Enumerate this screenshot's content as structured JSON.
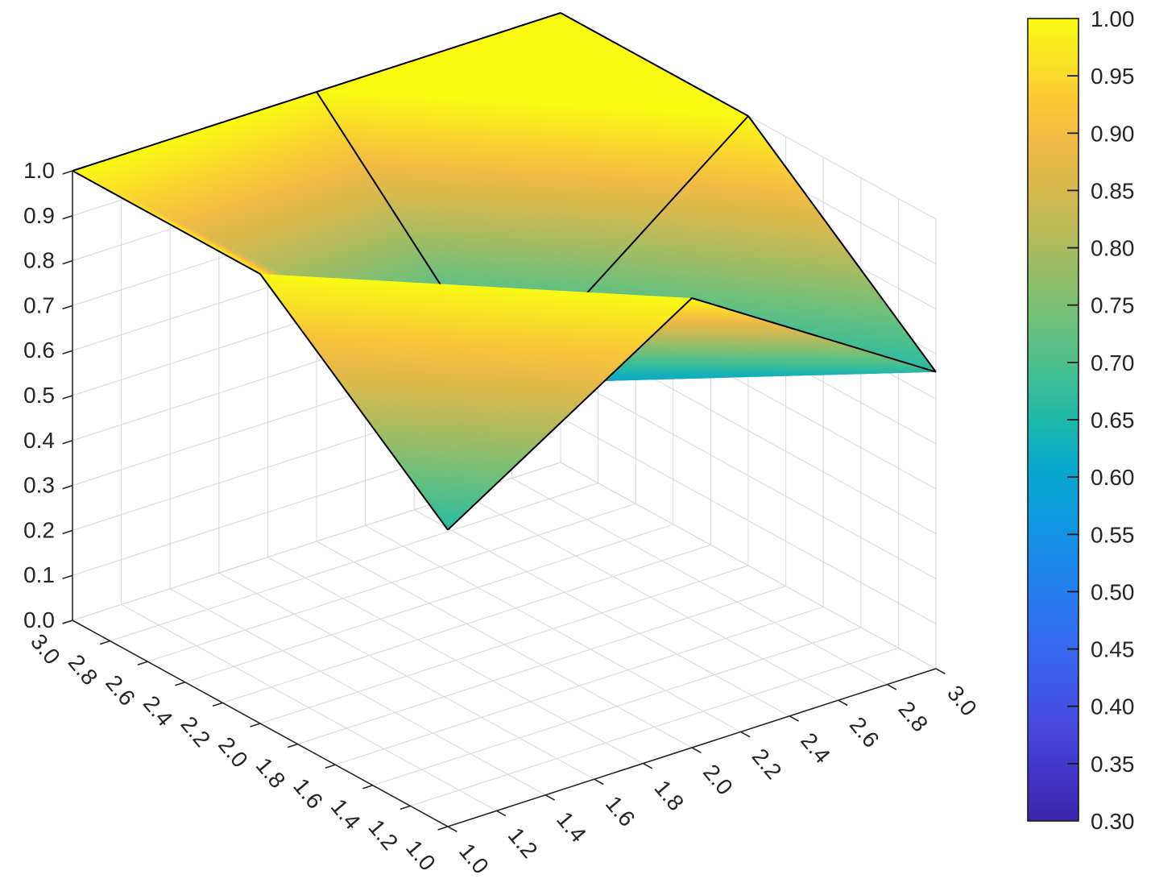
{
  "chart_data": {
    "type": "surface",
    "title": "",
    "xlabel": "",
    "ylabel": "",
    "zlabel": "",
    "x": [
      1,
      2,
      3
    ],
    "y": [
      1,
      2,
      3
    ],
    "z_rows_by_y": [
      [
        0.66,
        1.0,
        0.66
      ],
      [
        1.0,
        0.58,
        1.0
      ],
      [
        1.0,
        1.0,
        1.0
      ]
    ],
    "xlim": [
      1,
      3
    ],
    "ylim": [
      1,
      3
    ],
    "zlim": [
      0,
      1
    ],
    "x_tick_labels": [
      "1.0",
      "1.2",
      "1.4",
      "1.6",
      "1.8",
      "2.0",
      "2.2",
      "2.4",
      "2.6",
      "2.8",
      "3.0"
    ],
    "y_tick_labels": [
      "3.0",
      "2.8",
      "2.6",
      "2.4",
      "2.2",
      "2.0",
      "1.8",
      "1.6",
      "1.4",
      "1.2",
      "1.0"
    ],
    "z_tick_labels": [
      "0.0",
      "0.1",
      "0.2",
      "0.3",
      "0.4",
      "0.5",
      "0.6",
      "0.7",
      "0.8",
      "0.9",
      "1.0"
    ],
    "grid": true,
    "shading": "interp",
    "legend_position": "right-colorbar",
    "colorbar": {
      "min": 0.3,
      "max": 1.0,
      "tick_labels": [
        "0.30",
        "0.35",
        "0.40",
        "0.45",
        "0.50",
        "0.55",
        "0.60",
        "0.65",
        "0.70",
        "0.75",
        "0.80",
        "0.85",
        "0.90",
        "0.95",
        "1.00"
      ]
    },
    "colormap": {
      "name": "parula",
      "anchors": [
        [
          0.0,
          "#3a26a9"
        ],
        [
          0.06,
          "#4433c8"
        ],
        [
          0.12,
          "#4649dc"
        ],
        [
          0.18,
          "#3d5ce9"
        ],
        [
          0.25,
          "#2e74f0"
        ],
        [
          0.32,
          "#1d87ea"
        ],
        [
          0.38,
          "#0f99dd"
        ],
        [
          0.44,
          "#07a8cd"
        ],
        [
          0.5,
          "#1eb8a8"
        ],
        [
          0.56,
          "#46bf92"
        ],
        [
          0.62,
          "#6cc07d"
        ],
        [
          0.68,
          "#95bd68"
        ],
        [
          0.74,
          "#bcbb58"
        ],
        [
          0.8,
          "#ddb94c"
        ],
        [
          0.85,
          "#f2bb44"
        ],
        [
          0.9,
          "#fcc935"
        ],
        [
          0.95,
          "#f8e525"
        ],
        [
          1.0,
          "#f9fb13"
        ]
      ]
    },
    "colors": {
      "background": "#ffffff",
      "axis": "#262626",
      "grid": "#d9d9d9",
      "surface_edge": "#000000"
    }
  }
}
